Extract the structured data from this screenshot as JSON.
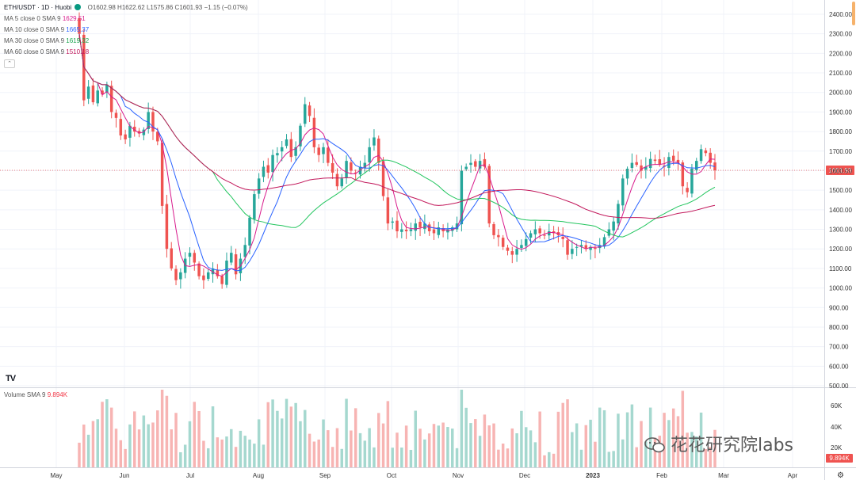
{
  "legend": {
    "symbol": "ETH/USDT · 1D · Huobi",
    "ohlc": "O1602.98 H1622.62 L1575.86 C1601.93 −1.15 (−0.07%)",
    "ma": [
      {
        "label": "MA 5 close 0 SMA 9",
        "value": "1629.51",
        "color": "#d81b8c"
      },
      {
        "label": "MA 10 close 0 SMA 9",
        "value": "1665.37",
        "color": "#2962ff"
      },
      {
        "label": "MA 30 close 0 SMA 9",
        "value": "1619.32",
        "color": "#22c55e"
      },
      {
        "label": "MA 60 close 0 SMA 9",
        "value": "1510.18",
        "color": "#c2185b"
      }
    ]
  },
  "volume_legend": {
    "label": "Volume SMA 9",
    "value": "9.894K"
  },
  "tv_logo": "TV",
  "watermark": "花花研究院labs",
  "chart_data": {
    "type": "candlestick",
    "y_range": [
      500,
      2500
    ],
    "y_ticks": [
      "2400.00",
      "2300.00",
      "2200.00",
      "2100.00",
      "2000.00",
      "1900.00",
      "1800.00",
      "1700.00",
      "1600.00",
      "1500.00",
      "1400.00",
      "1300.00",
      "1200.00",
      "1100.00",
      "1000.00",
      "900.00",
      "800.00",
      "700.00",
      "600.00",
      "500.00"
    ],
    "last_price": "1601.93",
    "x_labels": [
      "May",
      "Jun",
      "Jul",
      "Aug",
      "Sep",
      "Oct",
      "Nov",
      "Dec",
      "2023",
      "Feb",
      "Mar",
      "Apr"
    ],
    "volume_ticks": [
      "60K",
      "40K",
      "20K"
    ],
    "volume_last": "9.894K",
    "close": [
      2300,
      1960,
      2030,
      1950,
      2010,
      1990,
      2040,
      1900,
      1870,
      1780,
      1760,
      1830,
      1800,
      1790,
      1810,
      1900,
      1800,
      1750,
      1420,
      1200,
      1100,
      1040,
      1080,
      1150,
      1180,
      1130,
      1060,
      1040,
      1080,
      1100,
      1060,
      1020,
      1140,
      1180,
      1070,
      1150,
      1220,
      1360,
      1480,
      1560,
      1620,
      1590,
      1680,
      1690,
      1720,
      1760,
      1670,
      1720,
      1830,
      1940,
      1880,
      1720,
      1680,
      1720,
      1640,
      1590,
      1520,
      1560,
      1650,
      1600,
      1590,
      1620,
      1640,
      1720,
      1770,
      1640,
      1470,
      1330,
      1340,
      1290,
      1300,
      1290,
      1300,
      1330,
      1310,
      1330,
      1290,
      1280,
      1310,
      1290,
      1300,
      1310,
      1330,
      1600,
      1620,
      1640,
      1620,
      1650,
      1620,
      1330,
      1270,
      1260,
      1210,
      1190,
      1170,
      1200,
      1220,
      1250,
      1280,
      1300,
      1280,
      1270,
      1290,
      1280,
      1270,
      1250,
      1170,
      1200,
      1210,
      1220,
      1200,
      1210,
      1200,
      1220,
      1260,
      1300,
      1340,
      1430,
      1560,
      1610,
      1640,
      1630,
      1600,
      1620,
      1660,
      1650,
      1630,
      1620,
      1670,
      1650,
      1640,
      1520,
      1490,
      1610,
      1650,
      1710,
      1690,
      1640,
      1601.93
    ],
    "ma5_last": 1629.51,
    "ma10_last": 1665.37,
    "ma30_last": 1619.32,
    "ma60_last": 1510.18
  },
  "colors": {
    "up": "#26a69a",
    "down": "#ef5350",
    "up_vol": "#a5d8cf",
    "down_vol": "#f7b4b3",
    "price_line": "#ef5350"
  }
}
